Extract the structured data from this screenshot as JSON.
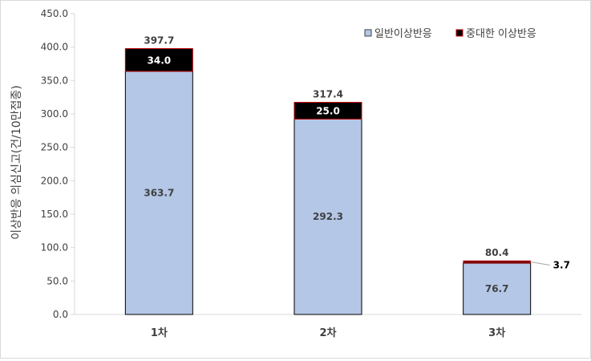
{
  "chart_data": {
    "type": "bar",
    "stacked": true,
    "categories": [
      "1차",
      "2차",
      "3차"
    ],
    "series": [
      {
        "name": "일반이상반응",
        "values": [
          363.7,
          292.3,
          76.7
        ],
        "color": "#b4c7e7",
        "label_color": "#404040"
      },
      {
        "name": "중대한 이상반응",
        "values": [
          34.0,
          25.0,
          3.7
        ],
        "color": "#000000",
        "label_color": "#ffffff",
        "outline": "#c00000",
        "small_color": "#7f0000"
      }
    ],
    "totals": [
      397.7,
      317.4,
      80.4
    ],
    "ylabel": "이상반응 의심신고(건/10만접종)",
    "ylim": [
      0,
      450
    ],
    "yticks": [
      "0.0",
      "50.0",
      "100.0",
      "150.0",
      "200.0",
      "250.0",
      "300.0",
      "350.0",
      "400.0",
      "450.0"
    ],
    "legend_position": "top-right",
    "grid": false
  }
}
